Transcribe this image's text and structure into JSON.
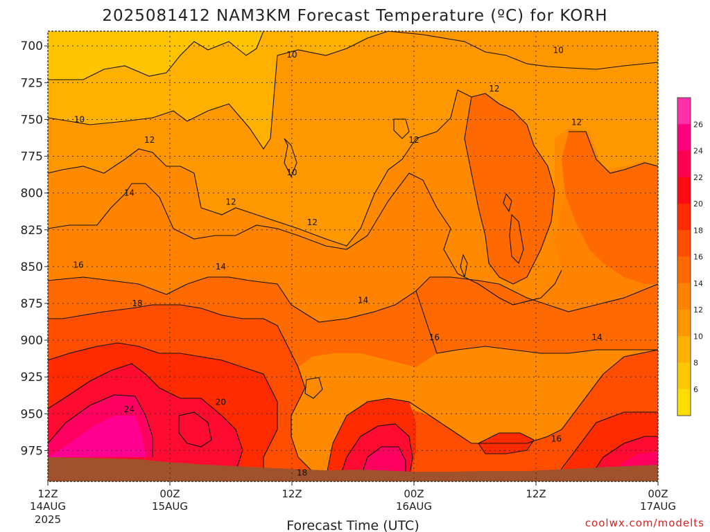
{
  "chart_data": {
    "type": "heatmap",
    "title": "2025081412 NAM3KM Forecast Temperature (ºC) for KORH",
    "xlabel": "Forecast Time (UTC)",
    "ylabel": "",
    "credit": "coolwx.com/modelts",
    "y_axis": {
      "label": "",
      "ticks": [
        700,
        725,
        750,
        775,
        800,
        825,
        850,
        875,
        900,
        925,
        950,
        975
      ],
      "range": [
        690,
        996
      ],
      "inverted": true
    },
    "x_axis": {
      "range_hours": [
        0,
        60
      ],
      "ticks": [
        {
          "hour": 0,
          "line1": "12Z",
          "line2": "14AUG",
          "line3": "2025"
        },
        {
          "hour": 12,
          "line1": "00Z",
          "line2": "15AUG",
          "line3": ""
        },
        {
          "hour": 24,
          "line1": "12Z",
          "line2": "",
          "line3": ""
        },
        {
          "hour": 36,
          "line1": "00Z",
          "line2": "16AUG",
          "line3": ""
        },
        {
          "hour": 48,
          "line1": "12Z",
          "line2": "",
          "line3": ""
        },
        {
          "hour": 60,
          "line1": "00Z",
          "line2": "17AUG",
          "line3": ""
        }
      ]
    },
    "grid": true,
    "colorbar": {
      "ticks": [
        "6",
        "8",
        "10",
        "12",
        "14",
        "16",
        "18",
        "20",
        "22",
        "24",
        "26"
      ],
      "levels": [
        4,
        6,
        8,
        10,
        12,
        14,
        16,
        18,
        20,
        22,
        24,
        26,
        28
      ],
      "colors": [
        "#ffdd00",
        "#ffc800",
        "#ffb000",
        "#ff9800",
        "#ff8200",
        "#ff6a00",
        "#ff4e00",
        "#ff2a00",
        "#ff0a14",
        "#ff0050",
        "#ff0080",
        "#ff30a8"
      ]
    },
    "contour_labels": [
      {
        "text": "10",
        "hour": 24.0,
        "p": 706
      },
      {
        "text": "10",
        "hour": 3.1,
        "p": 750
      },
      {
        "text": "10",
        "hour": 24.0,
        "p": 786
      },
      {
        "text": "10",
        "hour": 50.2,
        "p": 703
      },
      {
        "text": "12",
        "hour": 10.0,
        "p": 764
      },
      {
        "text": "12",
        "hour": 18.0,
        "p": 806
      },
      {
        "text": "12",
        "hour": 26.0,
        "p": 820
      },
      {
        "text": "12",
        "hour": 36.0,
        "p": 764
      },
      {
        "text": "12",
        "hour": 43.9,
        "p": 729
      },
      {
        "text": "12",
        "hour": 52.0,
        "p": 752
      },
      {
        "text": "14",
        "hour": 8.0,
        "p": 800
      },
      {
        "text": "14",
        "hour": 17.0,
        "p": 850
      },
      {
        "text": "14",
        "hour": 31.0,
        "p": 873
      },
      {
        "text": "14",
        "hour": 54.0,
        "p": 898
      },
      {
        "text": "16",
        "hour": 3.0,
        "p": 849
      },
      {
        "text": "16",
        "hour": 38.0,
        "p": 898
      },
      {
        "text": "16",
        "hour": 50.0,
        "p": 967
      },
      {
        "text": "18",
        "hour": 8.8,
        "p": 875
      },
      {
        "text": "18",
        "hour": 25.0,
        "p": 990
      },
      {
        "text": "20",
        "hour": 17.0,
        "p": 942
      },
      {
        "text": "24",
        "hour": 8.0,
        "p": 947
      }
    ],
    "surface_pressure_note": "ground (brown) below approx 980-990 hPa"
  }
}
